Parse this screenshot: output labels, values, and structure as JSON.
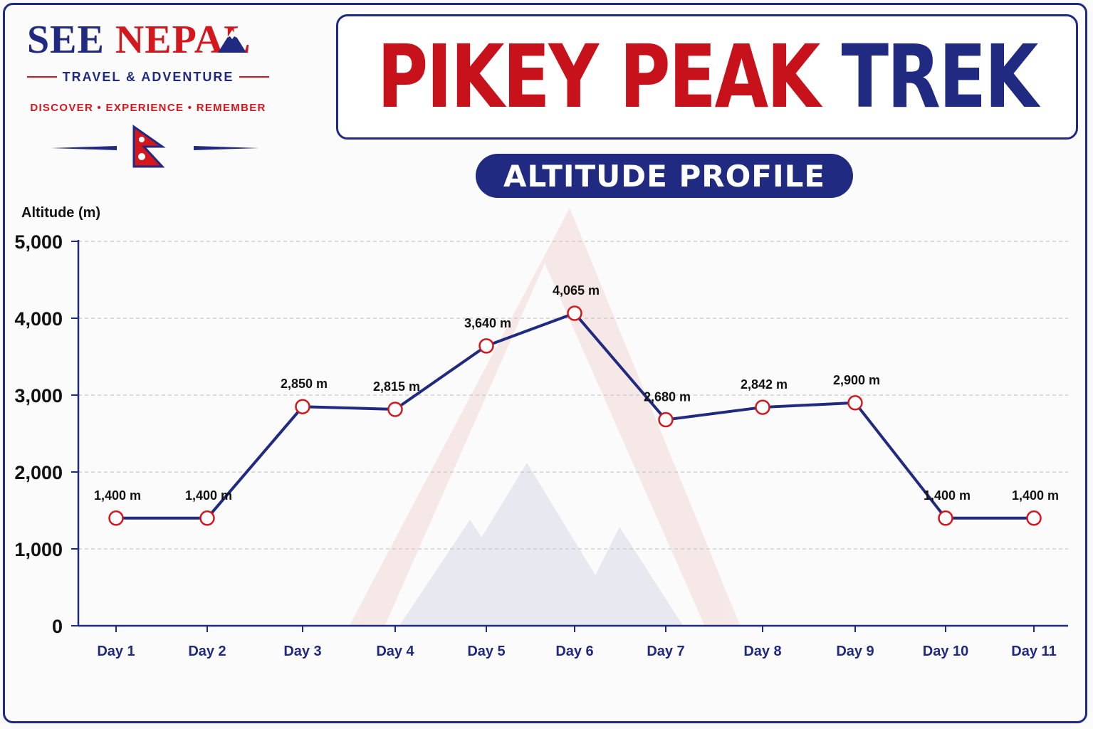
{
  "brand": {
    "name_part1": "SEE",
    "name_part2": "NEPAL",
    "tagline": "TRAVEL & ADVENTURE",
    "motto": "DISCOVER  •  EXPERIENCE  •  REMEMBER",
    "flag_icon": "nepal-flag-icon",
    "peak_icon": "mountain-peak-icon"
  },
  "title": {
    "part_red": "PIKEY PEAK",
    "part_blue": "TREK"
  },
  "subtitle": "ALTITUDE PROFILE",
  "colors": {
    "navy": "#1f2a80",
    "red": "#d4161d",
    "grid": "#c8c8c8"
  },
  "chart_data": {
    "type": "line",
    "ylabel": "Altitude (m)",
    "ylim": [
      0,
      5000
    ],
    "yticks": [
      "0",
      "1,000",
      "2,000",
      "3,000",
      "4,000",
      "5,000"
    ],
    "ytick_values": [
      0,
      1000,
      2000,
      3000,
      4000,
      5000
    ],
    "categories": [
      "Day 1",
      "Day 2",
      "Day 3",
      "Day 4",
      "Day 5",
      "Day 6",
      "Day 7",
      "Day 8",
      "Day 9",
      "Day 10",
      "Day 11"
    ],
    "values": [
      1400,
      1400,
      2850,
      2815,
      3640,
      4065,
      2680,
      2842,
      2900,
      1400,
      1400
    ],
    "data_labels": [
      "1,400 m",
      "1,400 m",
      "2,850 m",
      "2,815 m",
      "3,640 m",
      "4,065 m",
      "2,680 m",
      "2,842 m",
      "2,900 m",
      "1,400 m",
      "1,400 m"
    ],
    "grid": true,
    "legend": "none"
  }
}
